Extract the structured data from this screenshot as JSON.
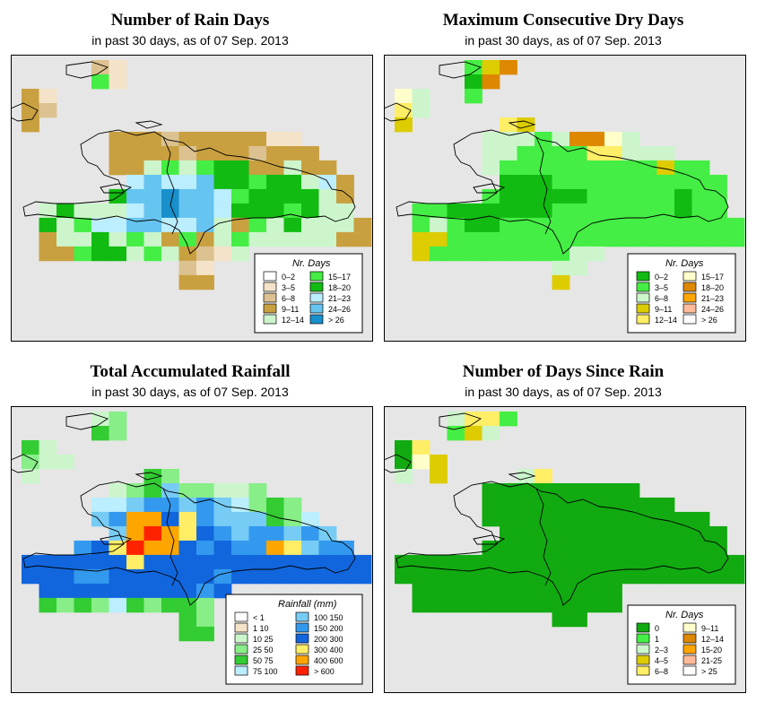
{
  "panels": [
    {
      "title": "Number of Rain Days",
      "subtitle": "in past 30 days, as of  07 Sep. 2013",
      "legend": {
        "title": "Nr. Days",
        "cols": 2,
        "items": [
          [
            "0–2",
            "#ffffff"
          ],
          [
            "3–5",
            "#f4e3c8"
          ],
          [
            "6–8",
            "#dcc290"
          ],
          [
            "9–11",
            "#c9a040"
          ],
          [
            "12–14",
            "#ccf5cc"
          ],
          [
            "15–17",
            "#44ee44"
          ],
          [
            "18–20",
            "#11bb11"
          ],
          [
            "21–23",
            "#bbeeff"
          ],
          [
            "24–26",
            "#66c4f0"
          ],
          [
            "> 26",
            "#1890cc"
          ]
        ]
      }
    },
    {
      "title": "Maximum Consecutive Dry Days",
      "subtitle": "in past 30 days, as of  07 Sep. 2013",
      "legend": {
        "title": "Nr. Days",
        "cols": 2,
        "items": [
          [
            "0–2",
            "#11bb11"
          ],
          [
            "3–5",
            "#44ee44"
          ],
          [
            "6–8",
            "#ccf5cc"
          ],
          [
            "9–11",
            "#ddcc00"
          ],
          [
            "12–14",
            "#ffee66"
          ],
          [
            "15–17",
            "#ffffcc"
          ],
          [
            "18–20",
            "#dd8800"
          ],
          [
            "21–23",
            "#ffa500"
          ],
          [
            "24–26",
            "#ffbb99"
          ],
          [
            "> 26",
            "#ffffff"
          ]
        ]
      }
    },
    {
      "title": "Total Accumulated Rainfall",
      "subtitle": "in past 30 days, as of  07 Sep. 2013",
      "legend": {
        "title": "Rainfall (mm)",
        "cols": 2,
        "items": [
          [
            "< 1",
            "#ffffff"
          ],
          [
            "1   10",
            "#f4e3c8"
          ],
          [
            "10   25",
            "#ccf5cc"
          ],
          [
            "25   50",
            "#88ee88"
          ],
          [
            "50   75",
            "#33cc33"
          ],
          [
            "75   100",
            "#bbeeff"
          ],
          [
            "100   150",
            "#77ccf5"
          ],
          [
            "150   200",
            "#3399ee"
          ],
          [
            "200   300",
            "#1166dd"
          ],
          [
            "300   400",
            "#ffee66"
          ],
          [
            "400   600",
            "#ffa500"
          ],
          [
            "> 600",
            "#ff2200"
          ]
        ]
      }
    },
    {
      "title": "Number of Days Since Rain",
      "subtitle": "in past 30 days, as of  07 Sep. 2013",
      "legend": {
        "title": "Nr. Days",
        "cols": 2,
        "items": [
          [
            "0",
            "#11aa11"
          ],
          [
            "1",
            "#44ee44"
          ],
          [
            "2–3",
            "#ccf5cc"
          ],
          [
            "4–5",
            "#ddcc00"
          ],
          [
            "6–8",
            "#ffee66"
          ],
          [
            "9–11",
            "#ffffcc"
          ],
          [
            "12–14",
            "#dd8800"
          ],
          [
            "15-20",
            "#ffa500"
          ],
          [
            "21-25",
            "#ffbb99"
          ],
          [
            "> 25",
            "#ffffff"
          ]
        ]
      }
    }
  ],
  "colors": {
    "ocean": "#e6e6e6",
    "frame": "#000000"
  }
}
